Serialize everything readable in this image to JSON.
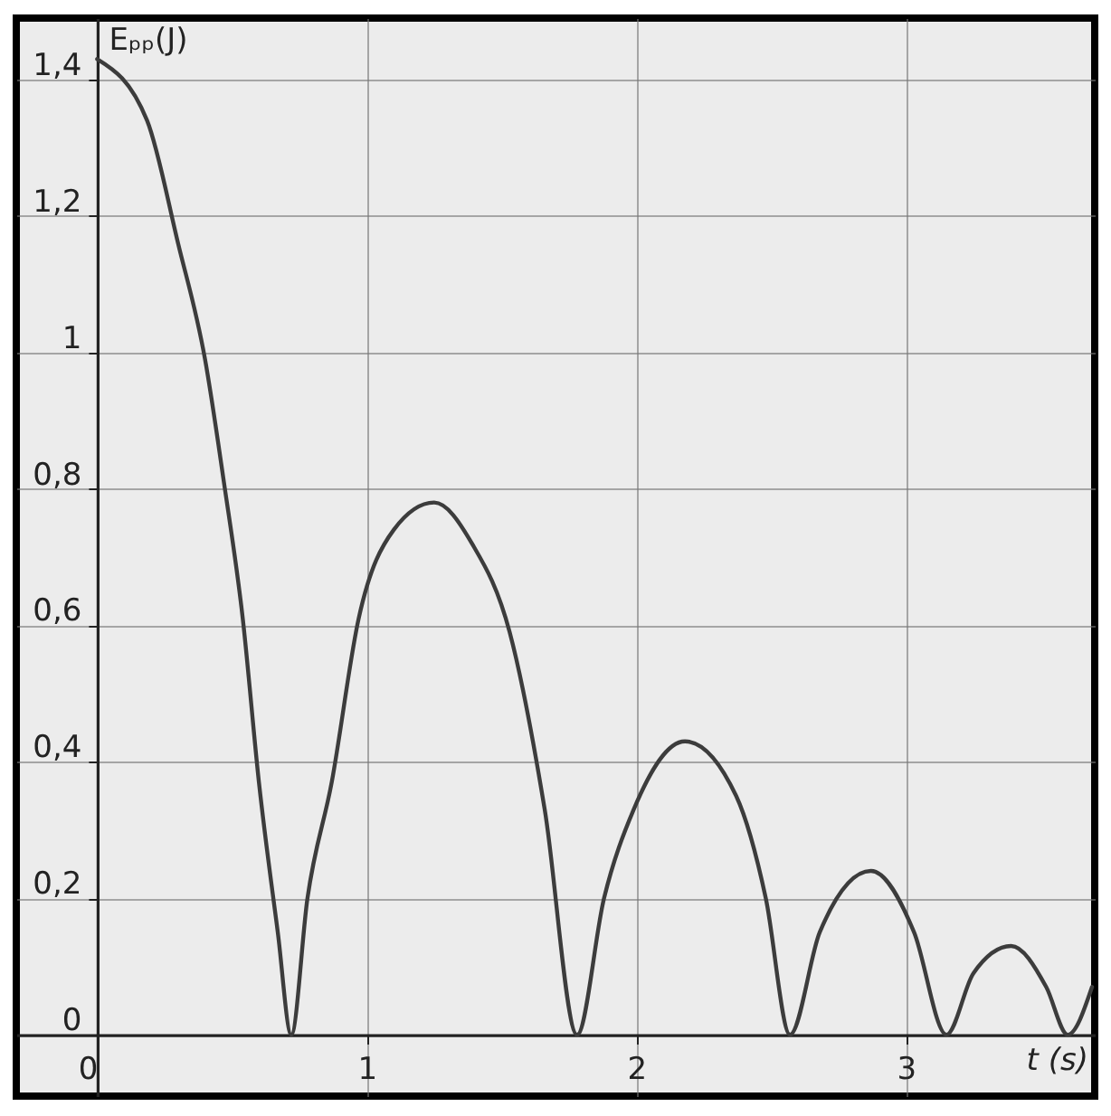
{
  "chart_data": {
    "type": "line",
    "xlabel": "t (s)",
    "ylabel": "Eₚₚ(J)",
    "x": [
      0,
      0.185,
      0.3,
      0.4,
      0.47,
      0.54,
      0.6,
      0.67,
      0.72,
      0.78,
      0.87,
      0.97,
      1.1,
      1.25,
      1.39,
      1.53,
      1.66,
      1.78,
      1.88,
      1.99,
      2.18,
      2.37,
      2.48,
      2.57,
      2.68,
      2.87,
      3.03,
      3.15,
      3.25,
      3.39,
      3.52,
      3.6,
      3.69
    ],
    "series": [
      {
        "color": "#3c3c3c",
        "values": [
          1.43,
          1.34,
          1.16,
          0.99,
          0.81,
          0.61,
          0.37,
          0.15,
          0,
          0.2,
          0.37,
          0.61,
          0.74,
          0.78,
          0.72,
          0.59,
          0.33,
          0,
          0.2,
          0.33,
          0.43,
          0.35,
          0.2,
          0,
          0.15,
          0.24,
          0.15,
          0,
          0.09,
          0.13,
          0.07,
          0,
          0.07
        ]
      }
    ],
    "xlim": [
      -0.3,
      3.7
    ],
    "ylim": [
      -0.09,
      1.49
    ],
    "xticks": [
      0,
      1,
      2,
      3
    ],
    "yticks": [
      0,
      {
        "value": 0.2,
        "label": "0,2"
      },
      {
        "value": 0.4,
        "label": "0,4"
      },
      {
        "value": 0.6,
        "label": "0,6"
      },
      {
        "value": 0.8,
        "label": "0,8"
      },
      1,
      {
        "value": 1.2,
        "label": "1,2"
      },
      {
        "value": 1.4,
        "label": "1,4"
      }
    ],
    "grid": true,
    "marker": "none",
    "line_style": "solid"
  }
}
